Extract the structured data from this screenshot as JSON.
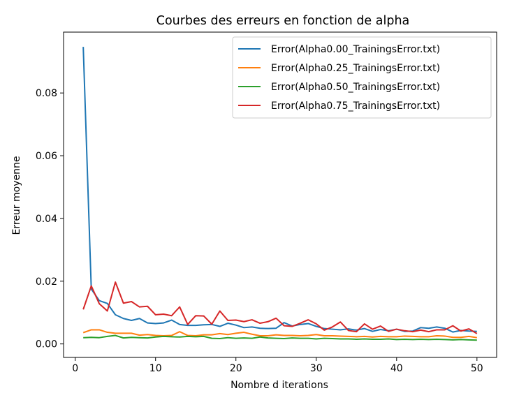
{
  "chart_data": {
    "type": "line",
    "title": "Courbes des erreurs en fonction de alpha",
    "xlabel": "Nombre d iterations",
    "ylabel": "Erreur moyenne",
    "xlim": [
      -1.45,
      52.45
    ],
    "ylim": [
      -0.0043,
      0.0994
    ],
    "xticks": [
      0,
      10,
      20,
      30,
      40,
      50
    ],
    "yticks": [
      0.0,
      0.02,
      0.04,
      0.06,
      0.08
    ],
    "ytick_labels": [
      "0.00",
      "0.02",
      "0.04",
      "0.06",
      "0.08"
    ],
    "grid": false,
    "legend_position": "top-right",
    "x": [
      1,
      2,
      3,
      4,
      5,
      6,
      7,
      8,
      9,
      10,
      11,
      12,
      13,
      14,
      15,
      16,
      17,
      18,
      19,
      20,
      21,
      22,
      23,
      24,
      25,
      26,
      27,
      28,
      29,
      30,
      31,
      32,
      33,
      34,
      35,
      36,
      37,
      38,
      39,
      40,
      41,
      42,
      43,
      44,
      45,
      46,
      47,
      48,
      49,
      50
    ],
    "series": [
      {
        "name": "Error(Alpha0.00_TrainingsError.txt)",
        "color": "#1f77b4",
        "values": [
          0.0947,
          0.0175,
          0.0138,
          0.0129,
          0.0093,
          0.0081,
          0.0075,
          0.0081,
          0.0067,
          0.0065,
          0.0067,
          0.0076,
          0.0062,
          0.0059,
          0.0059,
          0.0061,
          0.0062,
          0.0056,
          0.0066,
          0.006,
          0.0052,
          0.0054,
          0.005,
          0.0049,
          0.005,
          0.0068,
          0.0057,
          0.0062,
          0.0065,
          0.0056,
          0.0049,
          0.0047,
          0.0045,
          0.0048,
          0.0044,
          0.0049,
          0.004,
          0.0046,
          0.0042,
          0.0047,
          0.004,
          0.0041,
          0.0052,
          0.005,
          0.0054,
          0.005,
          0.0038,
          0.0043,
          0.0041,
          0.004
        ]
      },
      {
        "name": "Error(Alpha0.25_TrainingsError.txt)",
        "color": "#ff7f0e",
        "values": [
          0.0036,
          0.0045,
          0.0045,
          0.0037,
          0.0034,
          0.0034,
          0.0034,
          0.0028,
          0.003,
          0.0027,
          0.0026,
          0.0027,
          0.0039,
          0.0027,
          0.0026,
          0.0029,
          0.0029,
          0.0033,
          0.003,
          0.0034,
          0.0037,
          0.0031,
          0.0026,
          0.0026,
          0.0029,
          0.0027,
          0.0027,
          0.0026,
          0.0027,
          0.003,
          0.0026,
          0.0026,
          0.0025,
          0.0024,
          0.0023,
          0.0024,
          0.0022,
          0.0024,
          0.0023,
          0.0023,
          0.0025,
          0.0024,
          0.0023,
          0.0023,
          0.0026,
          0.0025,
          0.0021,
          0.0021,
          0.0024,
          0.002
        ]
      },
      {
        "name": "Error(Alpha0.50_TrainingsError.txt)",
        "color": "#2ca02c",
        "values": [
          0.002,
          0.0021,
          0.002,
          0.0024,
          0.0027,
          0.0019,
          0.0021,
          0.002,
          0.0019,
          0.0022,
          0.0024,
          0.0023,
          0.0022,
          0.0024,
          0.0023,
          0.0024,
          0.0018,
          0.0017,
          0.002,
          0.0018,
          0.0019,
          0.0018,
          0.0022,
          0.0019,
          0.0018,
          0.0017,
          0.0019,
          0.0018,
          0.0018,
          0.0016,
          0.0018,
          0.0017,
          0.0016,
          0.0016,
          0.0015,
          0.0016,
          0.0015,
          0.0015,
          0.0016,
          0.0014,
          0.0015,
          0.0014,
          0.0015,
          0.0014,
          0.0015,
          0.0014,
          0.0013,
          0.0014,
          0.0013,
          0.0012
        ]
      },
      {
        "name": "Error(Alpha0.75_TrainingsError.txt)",
        "color": "#d62728",
        "values": [
          0.011,
          0.0185,
          0.0128,
          0.0105,
          0.0197,
          0.013,
          0.0135,
          0.0118,
          0.012,
          0.0093,
          0.0095,
          0.009,
          0.0118,
          0.0062,
          0.009,
          0.0089,
          0.0063,
          0.0105,
          0.0075,
          0.0076,
          0.0071,
          0.0077,
          0.0066,
          0.0071,
          0.0082,
          0.0058,
          0.0056,
          0.0066,
          0.0077,
          0.0064,
          0.0044,
          0.0054,
          0.007,
          0.0043,
          0.0039,
          0.0064,
          0.0047,
          0.0057,
          0.004,
          0.0047,
          0.0042,
          0.0039,
          0.0044,
          0.0039,
          0.0045,
          0.0045,
          0.0058,
          0.0041,
          0.0048,
          0.0033
        ]
      }
    ]
  }
}
